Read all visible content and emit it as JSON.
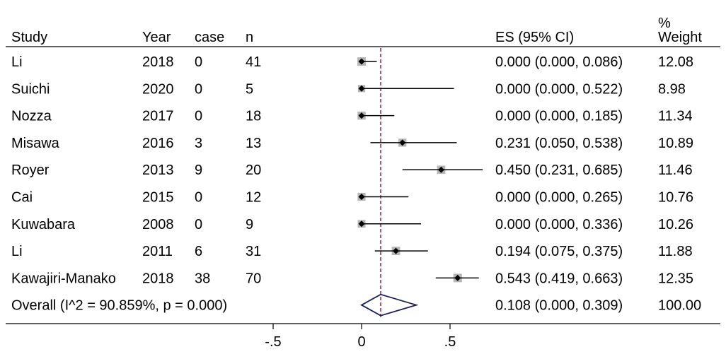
{
  "chart_data": {
    "type": "forest",
    "columns": {
      "study": "Study",
      "year": "Year",
      "case": "case",
      "n": "n",
      "es": "ES (95% CI)",
      "weight_top": "%",
      "weight_bottom": "Weight"
    },
    "rows": [
      {
        "study": "Li",
        "year": "2018",
        "case": "0",
        "n": "41",
        "es": 0.0,
        "lo": 0.0,
        "hi": 0.086,
        "es_text": "0.000 (0.000, 0.086)",
        "weight": "12.08"
      },
      {
        "study": "Suichi",
        "year": "2020",
        "case": "0",
        "n": "5",
        "es": 0.0,
        "lo": 0.0,
        "hi": 0.522,
        "es_text": "0.000 (0.000, 0.522)",
        "weight": "8.98"
      },
      {
        "study": "Nozza",
        "year": "2017",
        "case": "0",
        "n": "18",
        "es": 0.0,
        "lo": 0.0,
        "hi": 0.185,
        "es_text": "0.000 (0.000, 0.185)",
        "weight": "11.34"
      },
      {
        "study": "Misawa",
        "year": "2016",
        "case": "3",
        "n": "13",
        "es": 0.231,
        "lo": 0.05,
        "hi": 0.538,
        "es_text": "0.231 (0.050, 0.538)",
        "weight": "10.89"
      },
      {
        "study": "Royer",
        "year": "2013",
        "case": "9",
        "n": "20",
        "es": 0.45,
        "lo": 0.231,
        "hi": 0.685,
        "es_text": "0.450 (0.231, 0.685)",
        "weight": "11.46"
      },
      {
        "study": "Cai",
        "year": "2015",
        "case": "0",
        "n": "12",
        "es": 0.0,
        "lo": 0.0,
        "hi": 0.265,
        "es_text": "0.000 (0.000, 0.265)",
        "weight": "10.76"
      },
      {
        "study": "Kuwabara",
        "year": "2008",
        "case": "0",
        "n": "9",
        "es": 0.0,
        "lo": 0.0,
        "hi": 0.336,
        "es_text": "0.000 (0.000, 0.336)",
        "weight": "10.26"
      },
      {
        "study": "Li",
        "year": "2011",
        "case": "6",
        "n": "31",
        "es": 0.194,
        "lo": 0.075,
        "hi": 0.375,
        "es_text": "0.194 (0.075, 0.375)",
        "weight": "11.88"
      },
      {
        "study": "Kawajiri-Manako",
        "year": "2018",
        "case": "38",
        "n": "70",
        "es": 0.543,
        "lo": 0.419,
        "hi": 0.663,
        "es_text": "0.543 (0.419, 0.663)",
        "weight": "12.35"
      }
    ],
    "overall": {
      "label": "Overall  (I^2 = 90.859%, p = 0.000)",
      "es": 0.108,
      "lo": 0.0,
      "hi": 0.309,
      "es_text": "0.108 (0.000, 0.309)",
      "weight": "100.00"
    },
    "x_ticks": [
      -0.5,
      0,
      0.5
    ],
    "x_tick_labels": [
      "-.5",
      "0",
      ".5"
    ],
    "xlim": [
      -0.86,
      0.76
    ],
    "reference_line": 0.108,
    "colors": {
      "ci_line": "#000000",
      "marker": "#000000",
      "weight_box": "#b5b5b5",
      "reference": "#8b2846",
      "diamond": "#1a1f5c"
    }
  }
}
